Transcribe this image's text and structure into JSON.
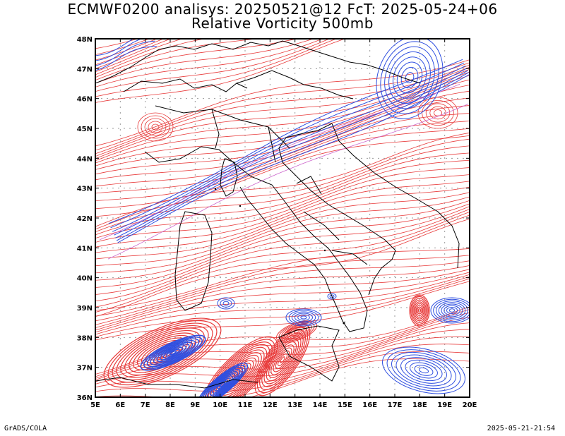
{
  "title": {
    "line1": "ECMWF0200 analisys: 20250521@12 FcT: 2025-05-24+06",
    "line2": "Relative Vorticity 500mb"
  },
  "map": {
    "lon_range": [
      5,
      20
    ],
    "lat_range": [
      36,
      48
    ],
    "lon_labels": [
      "5E",
      "6E",
      "7E",
      "8E",
      "9E",
      "10E",
      "11E",
      "12E",
      "13E",
      "14E",
      "15E",
      "16E",
      "17E",
      "18E",
      "19E",
      "20E"
    ],
    "lat_labels": [
      "36N",
      "37N",
      "38N",
      "39N",
      "40N",
      "41N",
      "42N",
      "43N",
      "44N",
      "45N",
      "46N",
      "47N",
      "48N"
    ],
    "grid": "dotted",
    "colors": {
      "positive_contours": "#e83a3a",
      "negative_contours": "#2f4fe0",
      "zero_contours": "#cc66cc",
      "borders": "#000000",
      "grid": "#999999"
    }
  },
  "footer": {
    "credit": "GrADS/COLA",
    "timestamp": "2025-05-21-21:54"
  }
}
